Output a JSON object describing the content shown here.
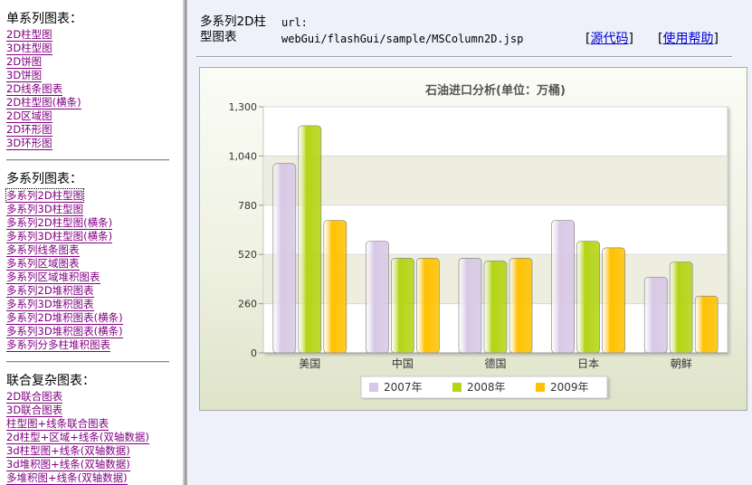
{
  "nav": {
    "sections": [
      {
        "title": "单系列图表：",
        "links": [
          "2D柱型图",
          "3D柱型图",
          "2D饼图",
          "3D饼图",
          "2D线条图表",
          "2D柱型图(横条)",
          "2D区域图",
          "2D环形图",
          "3D环形图"
        ]
      },
      {
        "title": "多系列图表：",
        "links": [
          "多系列2D柱型图",
          "多系列3D柱型图",
          "多系列2D柱型图(横条)",
          "多系列3D柱型图(横条)",
          "多系列线条图表",
          "多系列区域图表",
          "多系列区域堆积图表",
          "多系列2D堆积图表",
          "多系列3D堆积图表",
          "多系列2D堆积图表(横条)",
          "多系列3D堆积图表(横条)",
          "多系列分多柱堆积图表"
        ],
        "active_index": 0
      },
      {
        "title": "联合复杂图表：",
        "links": [
          "2D联合图表",
          "3D联合图表",
          "柱型图+线条联合图表",
          "2d柱型+区域+线条(双轴数据)",
          "3d柱型图+线条(双轴数据)",
          "3d堆积图+线条(双轴数据)",
          "多堆积图+线条(双轴数据)"
        ]
      }
    ]
  },
  "header": {
    "title": "多系列2D柱型图表",
    "url_label": "url:",
    "url_value": "webGui/flashGui/sample/MSColumn2D.jsp",
    "source_link": "源代码",
    "help_link": "使用帮助"
  },
  "chart_data": {
    "type": "bar",
    "title": "石油进口分析(单位：万桶)",
    "categories": [
      "美国",
      "中国",
      "德国",
      "日本",
      "朝鲜"
    ],
    "series": [
      {
        "name": "2007年",
        "values": [
          1000,
          590,
          500,
          700,
          400
        ],
        "color": "#d8c8e6"
      },
      {
        "name": "2008年",
        "values": [
          1200,
          500,
          485,
          590,
          480
        ],
        "color": "#b4d414"
      },
      {
        "name": "2009年",
        "values": [
          700,
          500,
          500,
          555,
          300
        ],
        "color": "#ffc200"
      }
    ],
    "yticks": [
      "0",
      "260",
      "520",
      "780",
      "1,040",
      "1,300"
    ],
    "ylim": [
      0,
      1300
    ],
    "legend_position": "bottom"
  }
}
